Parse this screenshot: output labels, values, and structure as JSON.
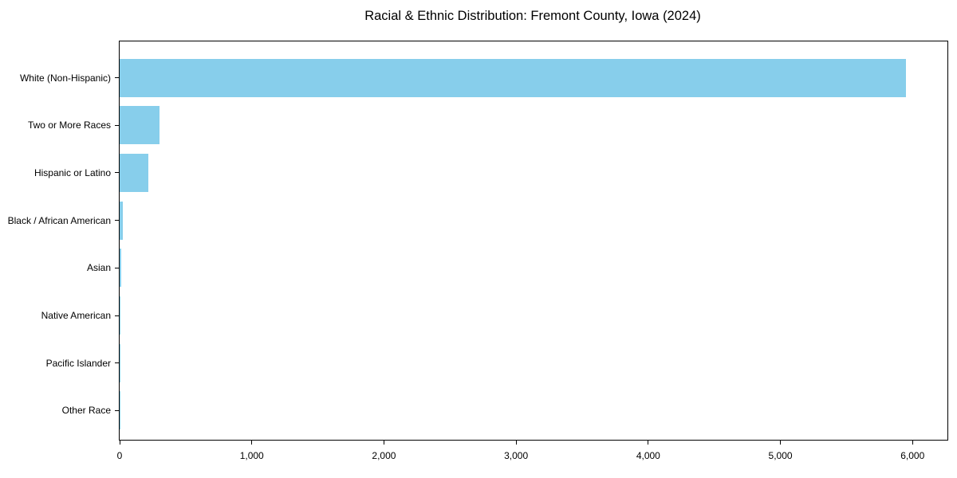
{
  "chart_data": {
    "type": "bar",
    "orientation": "horizontal",
    "title": "Racial & Ethnic Distribution: Fremont County, Iowa (2024)",
    "xlabel": "",
    "ylabel": "",
    "categories": [
      "White (Non-Hispanic)",
      "Two or More Races",
      "Hispanic or Latino",
      "Black / African American",
      "Asian",
      "Native American",
      "Pacific Islander",
      "Other Race"
    ],
    "values": [
      5950,
      300,
      220,
      22,
      10,
      5,
      2,
      1
    ],
    "xlim": [
      0,
      6264
    ],
    "x_ticks": [
      0,
      1000,
      2000,
      3000,
      4000,
      5000,
      6000
    ],
    "x_tick_labels": [
      "0",
      "1,000",
      "2,000",
      "3,000",
      "4,000",
      "5,000",
      "6,000"
    ],
    "bar_color": "#87CEEB",
    "grid": false,
    "legend": false
  }
}
